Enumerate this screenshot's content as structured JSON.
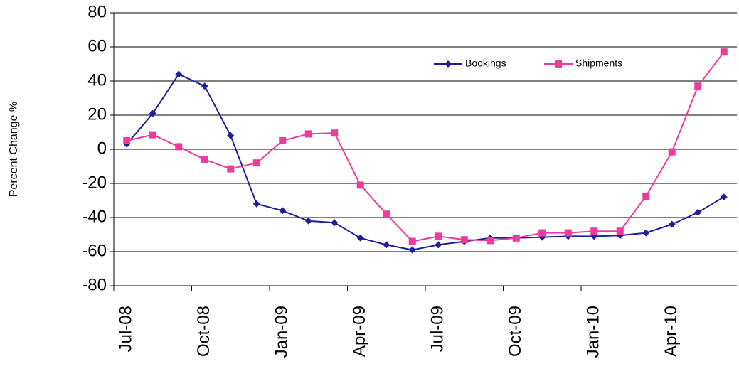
{
  "chart_data": {
    "type": "line",
    "y_label": "Percent Change %",
    "categories": [
      "Jul-08",
      null,
      null,
      "Oct-08",
      null,
      null,
      "Jan-09",
      null,
      null,
      "Apr-09",
      null,
      null,
      "Jul-09",
      null,
      null,
      "Oct-09",
      null,
      null,
      "Jan-10",
      null,
      null,
      "Apr-10",
      null,
      null
    ],
    "series": [
      {
        "name": "Bookings",
        "color": "#1f1f99",
        "marker": "diamond",
        "values": [
          3,
          21,
          44,
          37,
          8,
          -32,
          -36,
          -42,
          -43,
          -52,
          -56,
          -59,
          -56,
          -54,
          -52,
          -52,
          -51.5,
          -51,
          -51,
          -50.5,
          -49,
          -44,
          -37,
          -28
        ]
      },
      {
        "name": "Shipments",
        "color": "#ee3a9a",
        "marker": "square",
        "values": [
          5,
          8.5,
          1.5,
          -6,
          -11.5,
          -8,
          5,
          9,
          9.5,
          -21,
          -38,
          -54,
          -51,
          -53,
          -53.5,
          -52,
          -49,
          -49,
          -48,
          -48,
          -27.5,
          -1.5,
          37,
          57
        ]
      }
    ],
    "ylim": [
      -80,
      80
    ],
    "yticks": [
      -80,
      -60,
      -40,
      -20,
      0,
      20,
      40,
      60,
      80
    ],
    "grid": true,
    "legend": "top-right"
  }
}
